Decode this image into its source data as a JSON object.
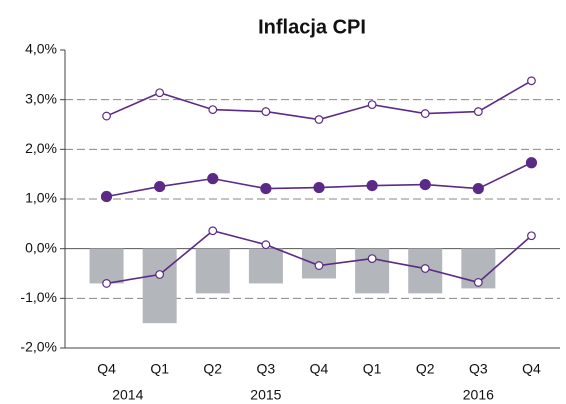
{
  "chart_data": {
    "type": "combo",
    "title": "Inflacja CPI",
    "categories": [
      "Q4",
      "Q1",
      "Q2",
      "Q3",
      "Q4",
      "Q1",
      "Q2",
      "Q3",
      "Q4"
    ],
    "years": [
      "2014",
      "2015",
      "2016"
    ],
    "ylim": [
      -2,
      4
    ],
    "yticks": [
      {
        "value": -2,
        "label": "-2,0%"
      },
      {
        "value": -1,
        "label": "-1,0%"
      },
      {
        "value": 0,
        "label": "0,0%"
      },
      {
        "value": 1,
        "label": "1,0%"
      },
      {
        "value": 2,
        "label": "2,0%"
      },
      {
        "value": 3,
        "label": "3,0%"
      },
      {
        "value": 4,
        "label": "4,0%"
      }
    ],
    "grid": true,
    "series": [
      {
        "type": "bar",
        "color": "#b3b6ba",
        "values": [
          -0.7,
          -1.5,
          -0.9,
          -0.7,
          -0.6,
          -0.9,
          -0.9,
          -0.8,
          null
        ]
      },
      {
        "type": "line",
        "marker": "open",
        "color": "#5b2a86",
        "values": [
          2.67,
          3.14,
          2.8,
          2.76,
          2.6,
          2.9,
          2.72,
          2.76,
          3.38
        ]
      },
      {
        "type": "line",
        "marker": "filled",
        "color": "#5b2a86",
        "values": [
          1.05,
          1.25,
          1.41,
          1.21,
          1.23,
          1.27,
          1.29,
          1.21,
          1.73
        ]
      },
      {
        "type": "line",
        "marker": "open",
        "color": "#5b2a86",
        "values": [
          -0.7,
          -0.52,
          0.36,
          0.08,
          -0.34,
          -0.2,
          -0.4,
          -0.68,
          0.26
        ]
      }
    ]
  }
}
